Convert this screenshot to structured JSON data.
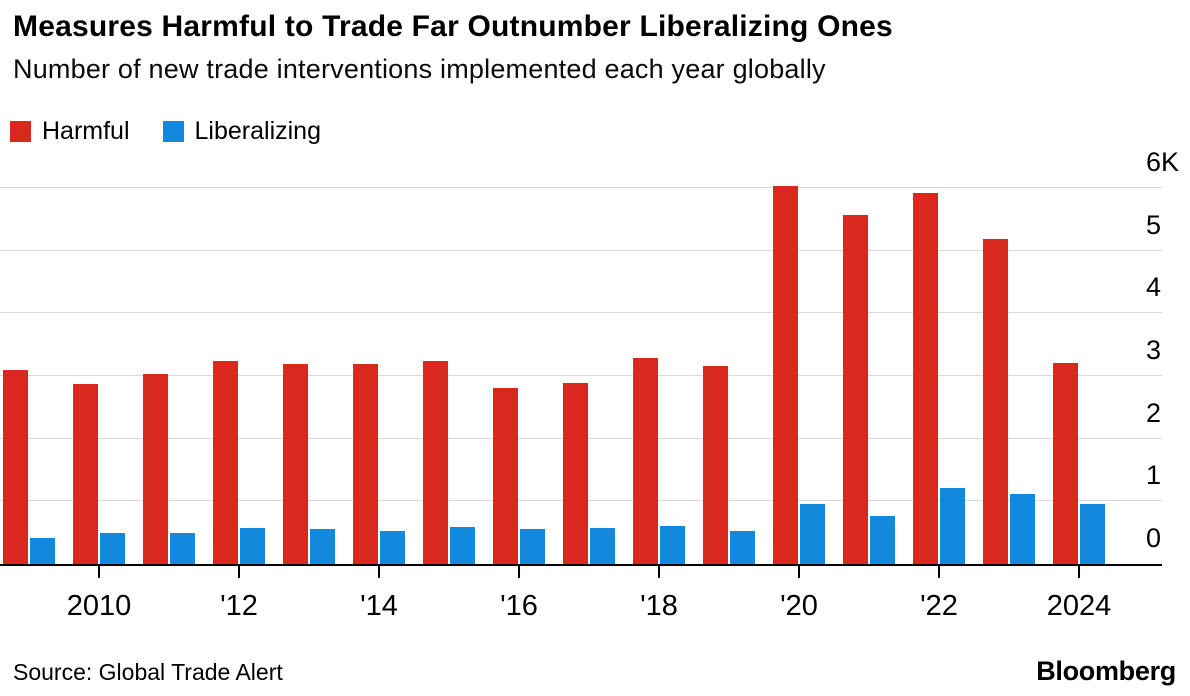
{
  "header": {
    "title": "Measures Harmful to Trade Far Outnumber Liberalizing Ones",
    "subtitle": "Number of new trade interventions implemented each year globally"
  },
  "footer": {
    "source": "Source: Global Trade Alert",
    "brand": "Bloomberg"
  },
  "chart_data": {
    "type": "bar",
    "title": "Measures Harmful to Trade Far Outnumber Liberalizing Ones",
    "subtitle": "Number of new trade interventions implemented each year globally",
    "categories": [
      "2009",
      "2010",
      "2011",
      "2012",
      "2013",
      "2014",
      "2015",
      "2016",
      "2017",
      "2018",
      "2019",
      "2020",
      "2021",
      "2022",
      "2023",
      "2024"
    ],
    "series": [
      {
        "name": "Harmful",
        "color": "#d9291f",
        "values": [
          3100,
          2870,
          3030,
          3230,
          3190,
          3190,
          3230,
          2810,
          2890,
          3290,
          3160,
          6030,
          5560,
          5920,
          5190,
          3210
        ]
      },
      {
        "name": "Liberalizing",
        "color": "#1289dc",
        "values": [
          420,
          490,
          500,
          570,
          560,
          520,
          590,
          560,
          570,
          600,
          520,
          950,
          760,
          1220,
          1120,
          950
        ]
      }
    ],
    "x_tick_labels": [
      {
        "index": 1,
        "label": "2010"
      },
      {
        "index": 3,
        "label": "'12"
      },
      {
        "index": 5,
        "label": "'14"
      },
      {
        "index": 7,
        "label": "'16"
      },
      {
        "index": 9,
        "label": "'18"
      },
      {
        "index": 11,
        "label": "'20"
      },
      {
        "index": 13,
        "label": "'22"
      },
      {
        "index": 15,
        "label": "2024"
      }
    ],
    "y_axis": {
      "position": "right",
      "ticks": [
        {
          "value": 0,
          "label": "0"
        },
        {
          "value": 1000,
          "label": "1"
        },
        {
          "value": 2000,
          "label": "2"
        },
        {
          "value": 3000,
          "label": "3"
        },
        {
          "value": 4000,
          "label": "4"
        },
        {
          "value": 5000,
          "label": "5"
        },
        {
          "value": 6000,
          "label": "6K"
        }
      ],
      "ylim": [
        0,
        6600
      ]
    },
    "grid": "horizontal",
    "legend_position": "top-left",
    "xlabel": "",
    "ylabel": ""
  }
}
